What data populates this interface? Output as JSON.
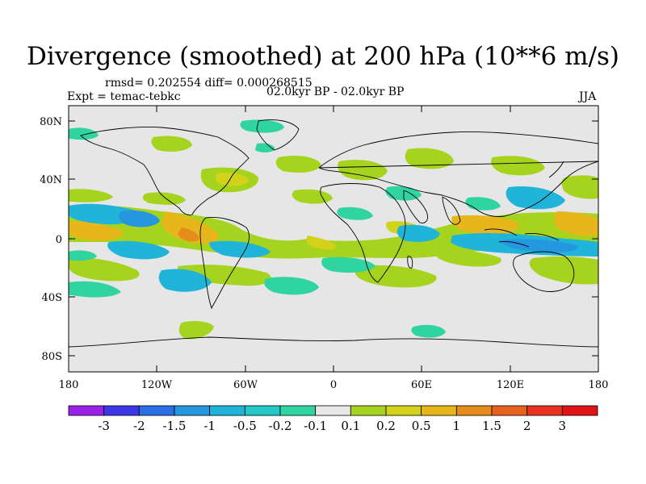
{
  "title": "Divergence (smoothed) at 200 hPa (10**6 m/s)",
  "stats": "rmsd= 0.202554 diff= 0.000268515",
  "experiment": "Expt = temac-tebkc",
  "period": "02.0kyr BP - 02.0kyr BP",
  "season": "JJA",
  "y_axis_labels": [
    "80N",
    "40N",
    "0",
    "40S",
    "80S"
  ],
  "x_axis_labels": [
    "180",
    "120W",
    "60W",
    "0",
    "60E",
    "120E",
    "180"
  ],
  "colorbar": {
    "labels": [
      "-3",
      "-2",
      "-1.5",
      "-1",
      "-0.5",
      "-0.2",
      "-0.1",
      "0.1",
      "0.2",
      "0.5",
      "1",
      "1.5",
      "2",
      "3"
    ],
    "colors": [
      "#9b22e8",
      "#3c36e6",
      "#2a6ee6",
      "#2596e0",
      "#20b4d8",
      "#22c8c8",
      "#30d4a0",
      "#e8e8e8",
      "#a6d41e",
      "#d2d21a",
      "#e6b61a",
      "#e68c1c",
      "#e6601e",
      "#e6321e",
      "#e01414"
    ]
  },
  "colors": {
    "land_background": "#e6e6e6",
    "neg_strong": "#2596e0",
    "neg_mid": "#20b4d8",
    "neg_weak": "#30d4a0",
    "pos_weak": "#a6d41e",
    "pos_mid": "#d2d21a",
    "pos_strong": "#e6b61a",
    "pos_high": "#e68c1c"
  }
}
